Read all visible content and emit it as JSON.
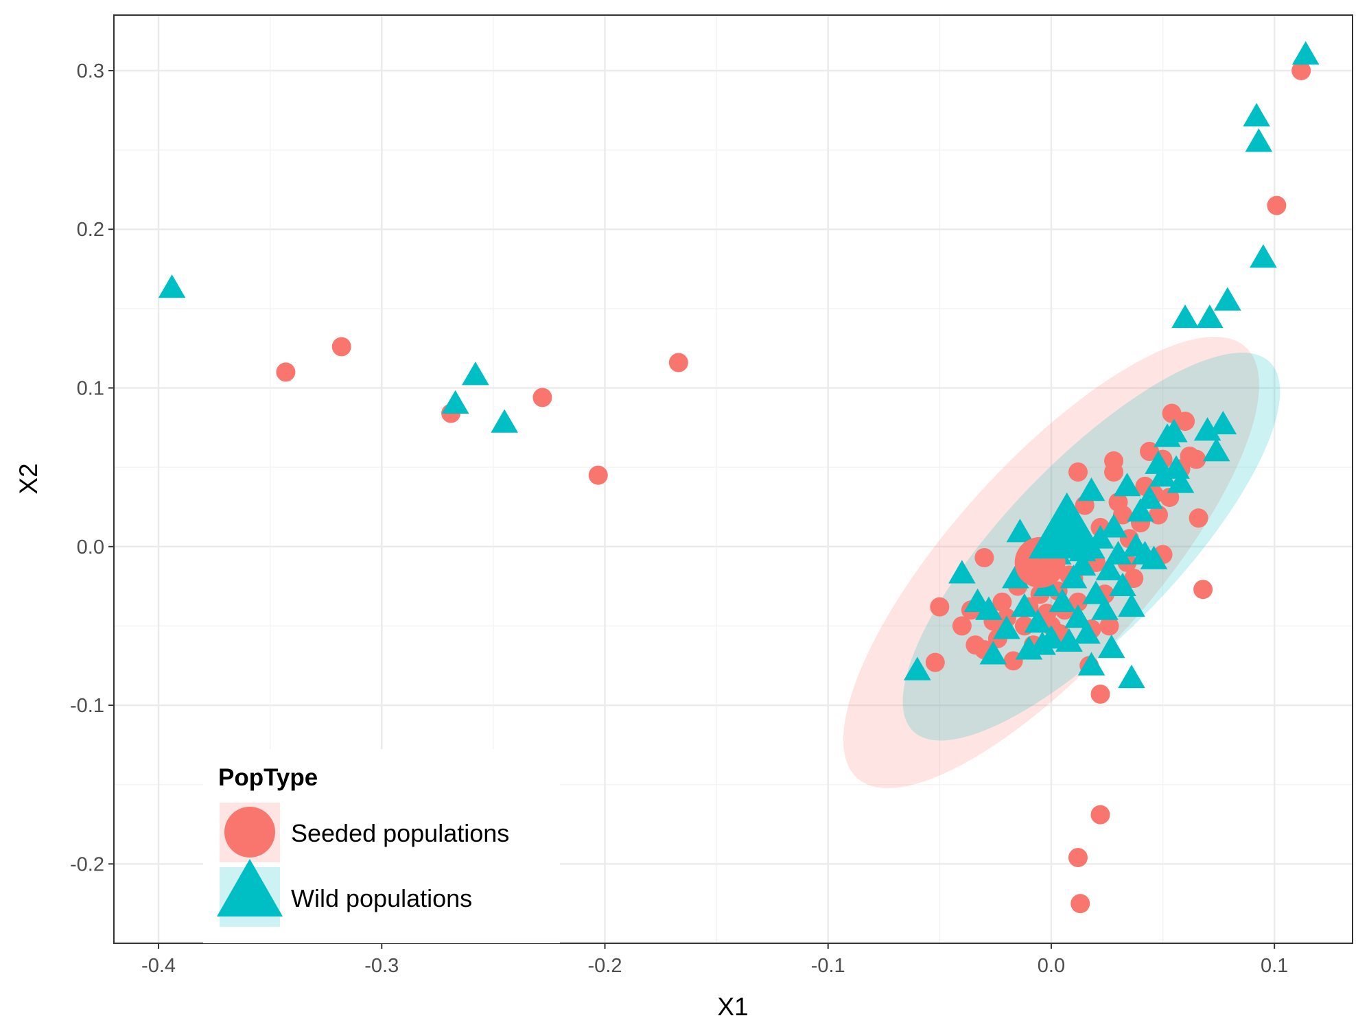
{
  "chart_data": {
    "type": "scatter",
    "title": "",
    "xlabel": "X1",
    "ylabel": "X2",
    "xlim": [
      -0.42,
      0.135
    ],
    "ylim": [
      -0.25,
      0.335
    ],
    "xticks": [
      -0.4,
      -0.3,
      -0.2,
      -0.1,
      0.0,
      0.1
    ],
    "xtick_labels": [
      "-0.4",
      "-0.3",
      "-0.2",
      "-0.1",
      "0.0",
      "0.1"
    ],
    "yticks": [
      -0.2,
      -0.1,
      0.0,
      0.1,
      0.2,
      0.3
    ],
    "ytick_labels": [
      "-0.2",
      "-0.1",
      "0.0",
      "0.1",
      "0.2",
      "0.3"
    ],
    "grid": true,
    "legend": {
      "title": "PopType",
      "position": "bottom-left"
    },
    "series": [
      {
        "name": "Seeded populations",
        "shape": "circle",
        "color": "#F8766D",
        "centroid": [
          -0.005,
          -0.01
        ],
        "ellipse": {
          "cx": 0.0,
          "cy": -0.01,
          "a": 0.13,
          "b": 0.063,
          "angle_deg": 48
        },
        "points": [
          [
            -0.343,
            0.11
          ],
          [
            -0.318,
            0.126
          ],
          [
            -0.269,
            0.084
          ],
          [
            -0.228,
            0.094
          ],
          [
            -0.203,
            0.045
          ],
          [
            -0.167,
            0.116
          ],
          [
            0.112,
            0.3
          ],
          [
            0.101,
            0.215
          ],
          [
            0.022,
            -0.169
          ],
          [
            0.012,
            -0.196
          ],
          [
            0.013,
            -0.225
          ],
          [
            0.022,
            -0.093
          ],
          [
            0.068,
            -0.027
          ],
          [
            -0.05,
            -0.038
          ],
          [
            -0.052,
            -0.073
          ],
          [
            -0.03,
            -0.007
          ],
          [
            -0.04,
            -0.05
          ],
          [
            -0.034,
            -0.062
          ],
          [
            -0.03,
            -0.065
          ],
          [
            -0.024,
            -0.058
          ],
          [
            -0.02,
            -0.045
          ],
          [
            -0.017,
            -0.072
          ],
          [
            -0.015,
            -0.025
          ],
          [
            -0.012,
            -0.05
          ],
          [
            -0.01,
            -0.038
          ],
          [
            -0.008,
            -0.062
          ],
          [
            -0.005,
            -0.03
          ],
          [
            -0.002,
            -0.042
          ],
          [
            0.0,
            -0.05
          ],
          [
            0.003,
            -0.028
          ],
          [
            0.006,
            -0.04
          ],
          [
            0.01,
            -0.02
          ],
          [
            0.012,
            -0.035
          ],
          [
            0.012,
            0.047
          ],
          [
            0.015,
            0.026
          ],
          [
            0.017,
            -0.075
          ],
          [
            0.02,
            -0.01
          ],
          [
            0.022,
            0.012
          ],
          [
            0.024,
            -0.03
          ],
          [
            0.026,
            -0.05
          ],
          [
            0.028,
            0.054
          ],
          [
            0.028,
            0.047
          ],
          [
            0.03,
            0.028
          ],
          [
            0.032,
            0.02
          ],
          [
            0.035,
            0.005
          ],
          [
            0.037,
            -0.02
          ],
          [
            0.04,
            0.015
          ],
          [
            0.042,
            0.038
          ],
          [
            0.044,
            0.06
          ],
          [
            0.046,
            0.033
          ],
          [
            0.048,
            0.02
          ],
          [
            0.05,
            0.055
          ],
          [
            0.05,
            -0.005
          ],
          [
            0.053,
            0.031
          ],
          [
            0.054,
            0.084
          ],
          [
            0.058,
            0.049
          ],
          [
            0.06,
            0.079
          ],
          [
            0.062,
            0.057
          ],
          [
            0.065,
            0.055
          ],
          [
            0.066,
            0.018
          ],
          [
            -0.022,
            -0.035
          ],
          [
            -0.026,
            -0.047
          ],
          [
            0.018,
            -0.052
          ],
          [
            -0.006,
            -0.008
          ],
          [
            0.004,
            -0.055
          ],
          [
            0.008,
            -0.018
          ],
          [
            -0.036,
            -0.04
          ],
          [
            0.034,
            -0.01
          ]
        ]
      },
      {
        "name": "Wild populations",
        "shape": "triangle",
        "color": "#00BFC4",
        "centroid": [
          0.007,
          0.01
        ],
        "ellipse": {
          "cx": 0.018,
          "cy": 0.0,
          "a": 0.115,
          "b": 0.054,
          "angle_deg": 46
        },
        "points": [
          [
            -0.394,
            0.163
          ],
          [
            -0.267,
            0.09
          ],
          [
            -0.258,
            0.108
          ],
          [
            -0.245,
            0.078
          ],
          [
            0.114,
            0.31
          ],
          [
            0.092,
            0.271
          ],
          [
            0.093,
            0.255
          ],
          [
            0.095,
            0.182
          ],
          [
            0.06,
            0.144
          ],
          [
            0.071,
            0.144
          ],
          [
            0.079,
            0.155
          ],
          [
            -0.06,
            -0.078
          ],
          [
            -0.04,
            -0.017
          ],
          [
            -0.033,
            -0.035
          ],
          [
            -0.028,
            -0.04
          ],
          [
            -0.026,
            -0.068
          ],
          [
            -0.02,
            -0.052
          ],
          [
            -0.014,
            0.009
          ],
          [
            -0.012,
            -0.038
          ],
          [
            -0.01,
            -0.065
          ],
          [
            -0.006,
            -0.048
          ],
          [
            -0.002,
            -0.025
          ],
          [
            0.0,
            -0.058
          ],
          [
            0.003,
            -0.005
          ],
          [
            0.005,
            -0.035
          ],
          [
            0.008,
            -0.06
          ],
          [
            0.01,
            -0.02
          ],
          [
            0.012,
            -0.045
          ],
          [
            0.014,
            -0.012
          ],
          [
            0.016,
            -0.055
          ],
          [
            0.018,
            0.035
          ],
          [
            0.018,
            -0.075
          ],
          [
            0.02,
            -0.03
          ],
          [
            0.022,
            0.005
          ],
          [
            0.024,
            -0.04
          ],
          [
            0.026,
            -0.015
          ],
          [
            0.028,
            0.012
          ],
          [
            0.03,
            -0.005
          ],
          [
            0.032,
            -0.025
          ],
          [
            0.034,
            0.038
          ],
          [
            0.036,
            -0.038
          ],
          [
            0.036,
            -0.083
          ],
          [
            0.038,
            0.0
          ],
          [
            0.04,
            0.022
          ],
          [
            0.042,
            -0.005
          ],
          [
            0.044,
            0.03
          ],
          [
            0.046,
            -0.008
          ],
          [
            0.048,
            0.052
          ],
          [
            0.05,
            0.044
          ],
          [
            0.052,
            0.069
          ],
          [
            0.055,
            0.072
          ],
          [
            0.056,
            0.049
          ],
          [
            0.058,
            0.04
          ],
          [
            0.07,
            0.073
          ],
          [
            0.074,
            0.06
          ],
          [
            0.077,
            0.077
          ],
          [
            -0.004,
            -0.062
          ],
          [
            -0.016,
            -0.02
          ],
          [
            0.027,
            -0.064
          ],
          [
            0.014,
            -0.003
          ]
        ]
      }
    ]
  }
}
